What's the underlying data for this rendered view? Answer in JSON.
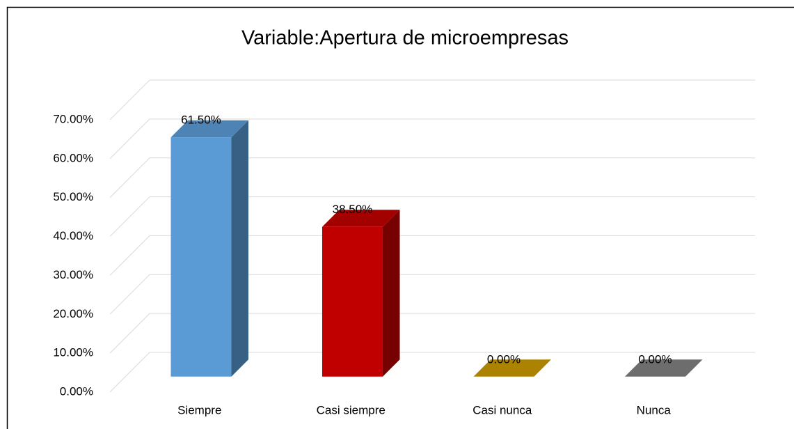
{
  "chart_data": {
    "type": "bar3d",
    "title": "Variable:Apertura de microempresas",
    "categories": [
      "Siempre",
      "Casi siempre",
      "Casi nunca",
      "Nunca"
    ],
    "values": [
      61.5,
      38.5,
      0,
      0
    ],
    "value_labels": [
      "61.50%",
      "38.50%",
      "0.00%",
      "0.00%"
    ],
    "colors": [
      "#5b9bd5",
      "#c00000",
      "#c99a00",
      "#808080"
    ],
    "ylim": [
      0,
      70
    ],
    "yticks": [
      {
        "value": 0,
        "label": "0.00%"
      },
      {
        "value": 10,
        "label": "10.00%"
      },
      {
        "value": 20,
        "label": "20.00%"
      },
      {
        "value": 30,
        "label": "30.00%"
      },
      {
        "value": 40,
        "label": "40.00%"
      },
      {
        "value": 50,
        "label": "50.00%"
      },
      {
        "value": 60,
        "label": "60.00%"
      },
      {
        "value": 70,
        "label": "70.00%"
      }
    ],
    "grid": true
  }
}
